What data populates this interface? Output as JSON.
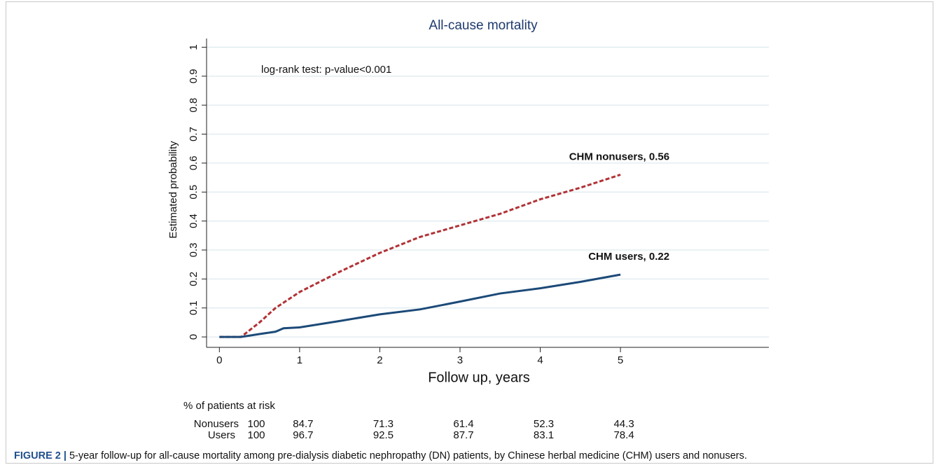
{
  "chart_data": {
    "type": "line",
    "title": "All-cause mortality",
    "annotation": "log-rank test: p-value<0.001",
    "ylabel": "Estimated probability",
    "xlabel": "Follow up, years",
    "xlim": [
      -0.16,
      6.85
    ],
    "ylim": [
      -0.036,
      1.03
    ],
    "xticks": [
      0,
      1,
      2,
      3,
      4,
      5
    ],
    "yticks": [
      0,
      0.1,
      0.2,
      0.3,
      0.4,
      0.5,
      0.6,
      0.7,
      0.8,
      0.9,
      1
    ],
    "grid": true,
    "series": [
      {
        "name": "CHM nonusers, 0.56",
        "color": "#b23236",
        "dash": true,
        "x": [
          0,
          0.27,
          0.5,
          0.7,
          1,
          1.5,
          2,
          2.5,
          3,
          3.5,
          4,
          4.5,
          5
        ],
        "values": [
          0,
          0,
          0.05,
          0.1,
          0.155,
          0.225,
          0.29,
          0.345,
          0.385,
          0.425,
          0.475,
          0.515,
          0.56
        ]
      },
      {
        "name": "CHM users, 0.22",
        "color": "#1c4a78",
        "dash": false,
        "x": [
          0,
          0.27,
          0.5,
          0.7,
          0.8,
          1,
          1.5,
          2,
          2.5,
          3,
          3.5,
          4,
          4.5,
          5
        ],
        "values": [
          0,
          0,
          0.01,
          0.018,
          0.03,
          0.033,
          0.055,
          0.078,
          0.095,
          0.122,
          0.15,
          0.168,
          0.19,
          0.215
        ]
      }
    ],
    "risk_table": {
      "title": "% of patients at risk",
      "rows": [
        {
          "name": "Nonusers",
          "values": [
            100,
            84.7,
            71.3,
            61.4,
            52.3,
            44.3
          ]
        },
        {
          "name": "Users",
          "values": [
            100,
            96.7,
            92.5,
            87.7,
            83.1,
            78.4
          ]
        }
      ]
    }
  },
  "caption": {
    "label": "FIGURE 2 |",
    "text": "5-year follow-up for all-cause mortality among pre-dialysis diabetic nephropathy (DN) patients, by Chinese herbal medicine (CHM) users and nonusers."
  }
}
